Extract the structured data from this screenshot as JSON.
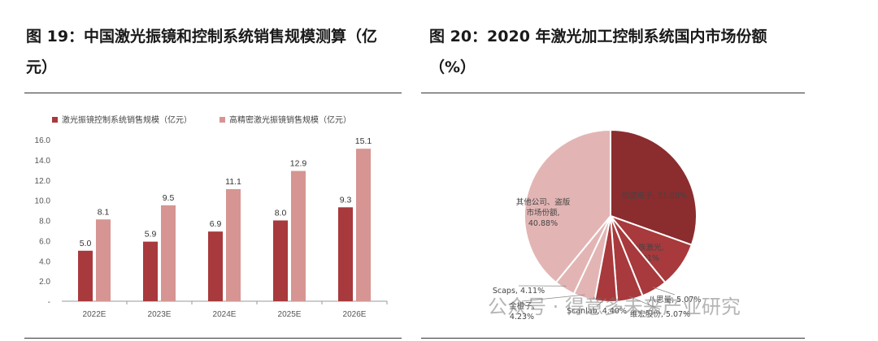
{
  "titles": {
    "left_line1": "图 19：中国激光振镜和控制系统销售规模测算（亿",
    "left_line2": "元）",
    "right_line1": "图 20：2020 年激光加工控制系统国内市场份额",
    "right_line2": "（%）"
  },
  "colors": {
    "series1": "#a8393c",
    "series2": "#d69592",
    "pie_dark": "#8b2c2e",
    "pie_mid": "#a8393c",
    "pie_light": "#e2b5b4",
    "axis": "#999999"
  },
  "watermark": "公众号 · 得意多未来产业研究",
  "chart_data": [
    {
      "type": "bar",
      "title": "中国激光振镜和控制系统销售规模测算（亿元）",
      "categories": [
        "2022E",
        "2023E",
        "2024E",
        "2025E",
        "2026E"
      ],
      "series": [
        {
          "name": "激光振镜控制系统销售规模（亿元）",
          "values": [
            5.0,
            5.9,
            6.9,
            8.0,
            9.3
          ]
        },
        {
          "name": "高精密激光振镜销售规模（亿元）",
          "values": [
            8.1,
            9.5,
            11.1,
            12.9,
            15.1
          ]
        }
      ],
      "yticks": [
        "16.0",
        "14.0",
        "12.0",
        "10.0",
        "8.0",
        "6.0",
        "4.0",
        "2.0",
        "-"
      ],
      "ylim": [
        0,
        16
      ],
      "grid": false,
      "legend": "top"
    },
    {
      "type": "pie",
      "title": "2020 年激光加工控制系统国内市场份额（%）",
      "slices": [
        {
          "label": "柏楚电子, 31.88%",
          "value": 31.88,
          "tone": "dark",
          "label_lines": [
            "柏楚电子, 31.88%"
          ]
        },
        {
          "label": "大族激光, 9.01%",
          "value": 9.01,
          "tone": "mid",
          "label_lines": [
            "大族激光,",
            "9.01%"
          ]
        },
        {
          "label": "八思量, 5.07%",
          "value": 5.07,
          "tone": "mid",
          "label_lines": [
            "八思量, 5.07%"
          ]
        },
        {
          "label": "维宏股份, 5.07%",
          "value": 5.07,
          "tone": "mid",
          "label_lines": [
            "维宏股份, 5.07%"
          ]
        },
        {
          "label": "Scanlab, 4.40%",
          "value": 4.4,
          "tone": "mid",
          "label_lines": [
            "Scanlab, 4.40%"
          ]
        },
        {
          "label": "金橙子, 4.23%",
          "value": 4.23,
          "tone": "light",
          "label_lines": [
            "金橙子,",
            "4.23%"
          ]
        },
        {
          "label": "Scaps, 4.11%",
          "value": 4.11,
          "tone": "light",
          "label_lines": [
            "Scaps, 4.11%"
          ]
        },
        {
          "label": "其他公司、盗版市场份额, 40.88%",
          "value": 40.88,
          "tone": "light",
          "label_lines": [
            "其他公司、盗版",
            "市场份额,",
            "40.88%"
          ]
        }
      ]
    }
  ]
}
